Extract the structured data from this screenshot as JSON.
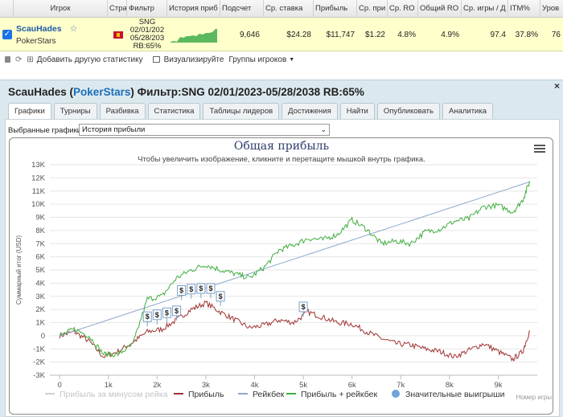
{
  "table": {
    "headers": [
      "Игрок",
      "Стра",
      "Фильтр",
      "История приб",
      "Подсчет",
      "Ср. ставка",
      "Прибыль",
      "Ср. при",
      "Ср. RO",
      "Общий RO",
      "Ср. игры / Д",
      "ITM%",
      "Уров"
    ],
    "row": {
      "name": "ScauHades",
      "room": "PokerStars",
      "filter": [
        "SNG",
        "02/01/202",
        "05/28/203",
        "RB:65%"
      ],
      "count": "9,646",
      "avg_stake": "$24.28",
      "profit": "$11,747",
      "avg_profit": "$1.22",
      "avg_roi": "4.8%",
      "total_roi": "4.9%",
      "avg_games": "97.4",
      "itm": "37.8%",
      "level": "76"
    }
  },
  "toolbar": {
    "add": "Добавить другую статистику",
    "visualize": "Визуализируйте",
    "groups": "Группы игроков"
  },
  "panel": {
    "name": "ScauHades",
    "room": "PokerStars",
    "filter": "Фильтр:SNG 02/01/2023-05/28/2038 RB:65%",
    "close": "×",
    "tabs": [
      "Графики",
      "Турниры",
      "Разбивка",
      "Статистика",
      "Таблицы лидеров",
      "Достижения",
      "Найти",
      "Опубликовать",
      "Аналитика"
    ],
    "select_label": "Выбранные графики:",
    "select_value": "История прибыли"
  },
  "chart_data": {
    "type": "line",
    "title": "Общая прибыль",
    "subtitle": "Чтобы увеличить изображение, кликните и перетащите мышкой внутрь графика.",
    "ylabel": "Суммарный итог (USD)",
    "xlabel": "Номер игры",
    "ylim": [
      -3000,
      13000
    ],
    "xlim": [
      -200,
      9800
    ],
    "yticks": [
      "-3K",
      "-2K",
      "-1K",
      "0",
      "1K",
      "2K",
      "3K",
      "4K",
      "5K",
      "6K",
      "7K",
      "8K",
      "9K",
      "10K",
      "11K",
      "12K",
      "13K"
    ],
    "xticks": [
      "0",
      "1k",
      "2k",
      "3k",
      "4k",
      "5k",
      "6k",
      "7k",
      "8k",
      "9k"
    ],
    "series": [
      {
        "name": "Прибыль за минусом рейка",
        "color": "#cfcfcf",
        "x": [],
        "y": []
      },
      {
        "name": "Прибыль",
        "color": "#a03232",
        "x": [
          0,
          300,
          600,
          900,
          1200,
          1500,
          1800,
          2100,
          2400,
          2700,
          3000,
          3300,
          3600,
          3900,
          4200,
          4500,
          4800,
          5100,
          5400,
          5700,
          6000,
          6300,
          6600,
          6900,
          7200,
          7500,
          7800,
          8100,
          8400,
          8700,
          9000,
          9300,
          9500,
          9646
        ],
        "y": [
          0,
          300,
          -400,
          -1600,
          -1200,
          -500,
          300,
          500,
          1200,
          2000,
          2500,
          1800,
          1200,
          600,
          800,
          1200,
          1000,
          1800,
          1400,
          1000,
          900,
          300,
          -200,
          -600,
          -700,
          -1000,
          -1200,
          -1600,
          -1100,
          -600,
          -1200,
          -1800,
          -1200,
          400
        ]
      },
      {
        "name": "Рейкбек",
        "color": "#8ea8cc",
        "x": [
          0,
          9646
        ],
        "y": [
          0,
          11700
        ]
      },
      {
        "name": "Прибыль + рейкбек",
        "color": "#3fae3f",
        "x": [
          0,
          300,
          600,
          900,
          1200,
          1500,
          1800,
          2100,
          2400,
          2700,
          3000,
          3300,
          3600,
          3900,
          4200,
          4500,
          4800,
          5100,
          5400,
          5700,
          6000,
          6300,
          6600,
          6900,
          7200,
          7500,
          7800,
          8100,
          8400,
          8700,
          9000,
          9300,
          9500,
          9646
        ],
        "y": [
          0,
          500,
          0,
          -1400,
          -1400,
          -700,
          2800,
          3000,
          4400,
          5000,
          5400,
          5000,
          4700,
          4400,
          5200,
          6500,
          6900,
          7400,
          7300,
          7700,
          8800,
          8100,
          7000,
          7200,
          7000,
          7900,
          8100,
          8700,
          8900,
          9800,
          9900,
          9400,
          10300,
          11750
        ]
      }
    ],
    "markers": {
      "name": "Значительные выигрыши",
      "label": "$",
      "points": [
        [
          1800,
          1200
        ],
        [
          2000,
          1350
        ],
        [
          2200,
          1500
        ],
        [
          2400,
          1650
        ],
        [
          2500,
          3200
        ],
        [
          2700,
          3300
        ],
        [
          2900,
          3350
        ],
        [
          3100,
          3350
        ],
        [
          3300,
          2750
        ],
        [
          5000,
          1950
        ]
      ]
    },
    "legend_position": "bottom"
  }
}
